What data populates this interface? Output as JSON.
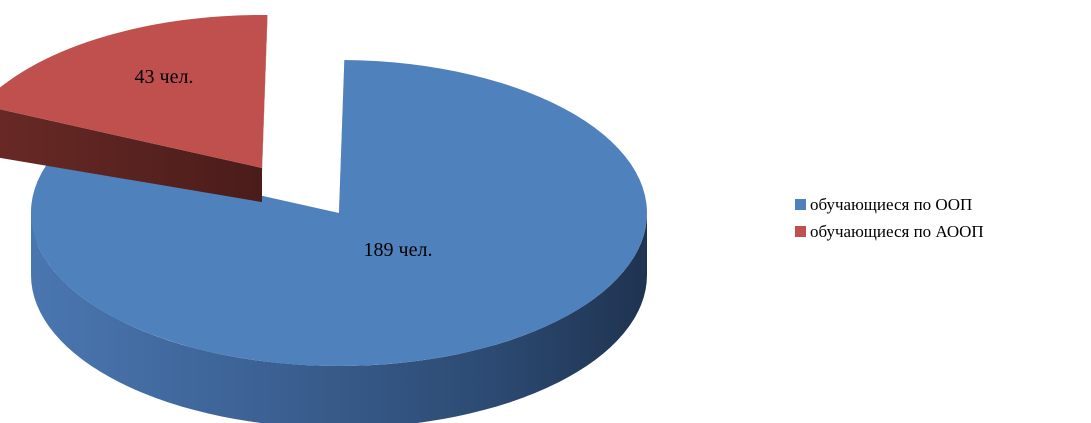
{
  "chart_data": {
    "type": "pie",
    "style": "3d-exploded",
    "series": [
      {
        "name": "обучающиеся по ООП",
        "value": 189,
        "label": "189 чел.",
        "color": "#4F81BD"
      },
      {
        "name": "обучающиеся по АООП",
        "value": 43,
        "label": "43 чел.",
        "color": "#C0504D"
      }
    ],
    "legend_position": "right"
  }
}
